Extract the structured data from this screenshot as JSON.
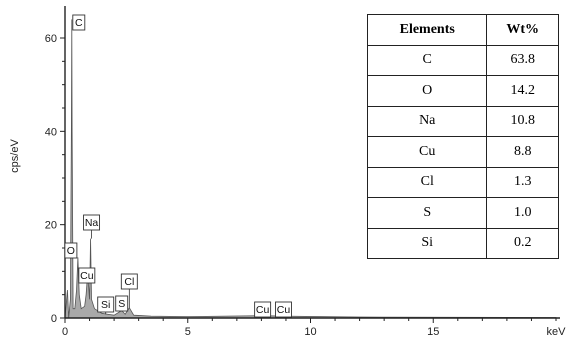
{
  "chart_data": {
    "type": "line",
    "xlabel": "keV",
    "ylabel": "cps/eV",
    "xlim": [
      0,
      20
    ],
    "ylim": [
      0,
      66
    ],
    "x_ticks": [
      0,
      5,
      10,
      15
    ],
    "y_ticks": [
      0,
      20,
      40,
      60
    ],
    "grid": false,
    "spectrum": [
      {
        "x": 0.0,
        "y": 0
      },
      {
        "x": 0.1,
        "y": 6
      },
      {
        "x": 0.15,
        "y": 0
      },
      {
        "x": 0.22,
        "y": 4
      },
      {
        "x": 0.26,
        "y": 40
      },
      {
        "x": 0.277,
        "y": 64
      },
      {
        "x": 0.29,
        "y": 40
      },
      {
        "x": 0.33,
        "y": 2
      },
      {
        "x": 0.4,
        "y": 2
      },
      {
        "x": 0.47,
        "y": 6
      },
      {
        "x": 0.525,
        "y": 13
      },
      {
        "x": 0.58,
        "y": 5
      },
      {
        "x": 0.66,
        "y": 2
      },
      {
        "x": 0.8,
        "y": 2.5
      },
      {
        "x": 0.86,
        "y": 5
      },
      {
        "x": 0.93,
        "y": 10
      },
      {
        "x": 0.96,
        "y": 7
      },
      {
        "x": 1.0,
        "y": 4
      },
      {
        "x": 1.041,
        "y": 17
      },
      {
        "x": 1.08,
        "y": 4
      },
      {
        "x": 1.2,
        "y": 2
      },
      {
        "x": 1.5,
        "y": 1
      },
      {
        "x": 1.74,
        "y": 0.8
      },
      {
        "x": 2.0,
        "y": 0.6
      },
      {
        "x": 2.31,
        "y": 1.6
      },
      {
        "x": 2.45,
        "y": 0.8
      },
      {
        "x": 2.62,
        "y": 2.2
      },
      {
        "x": 2.8,
        "y": 0.6
      },
      {
        "x": 3.5,
        "y": 0.4
      },
      {
        "x": 5.0,
        "y": 0.3
      },
      {
        "x": 8.05,
        "y": 0.5
      },
      {
        "x": 8.9,
        "y": 0.4
      },
      {
        "x": 12.0,
        "y": 0.2
      },
      {
        "x": 20.0,
        "y": 0.1
      }
    ],
    "peak_labels": [
      {
        "label": "C",
        "x": 0.277,
        "y": 64
      },
      {
        "label": "Na",
        "x": 1.041,
        "y": 17
      },
      {
        "label": "O",
        "x": 0.525,
        "y": 13
      },
      {
        "label": "Cu",
        "x": 0.93,
        "y": 10
      },
      {
        "label": "Cl",
        "x": 2.62,
        "y": 2.2
      },
      {
        "label": "Si",
        "x": 1.74,
        "y": 0.8
      },
      {
        "label": "S",
        "x": 2.31,
        "y": 1.6
      },
      {
        "label": "Cu",
        "x": 8.05,
        "y": 0.5
      },
      {
        "label": "Cu",
        "x": 8.9,
        "y": 0.4
      }
    ]
  },
  "table": {
    "headers": [
      "Elements",
      "Wt%"
    ],
    "rows": [
      {
        "element": "C",
        "wt": "63.8"
      },
      {
        "element": "O",
        "wt": "14.2"
      },
      {
        "element": "Na",
        "wt": "10.8"
      },
      {
        "element": "Cu",
        "wt": "8.8"
      },
      {
        "element": "Cl",
        "wt": "1.3"
      },
      {
        "element": "S",
        "wt": "1.0"
      },
      {
        "element": "Si",
        "wt": "0.2"
      }
    ]
  },
  "colors": {
    "spectrum_fill": "#a9a9a9",
    "spectrum_line": "#555555",
    "axis": "#222222"
  }
}
